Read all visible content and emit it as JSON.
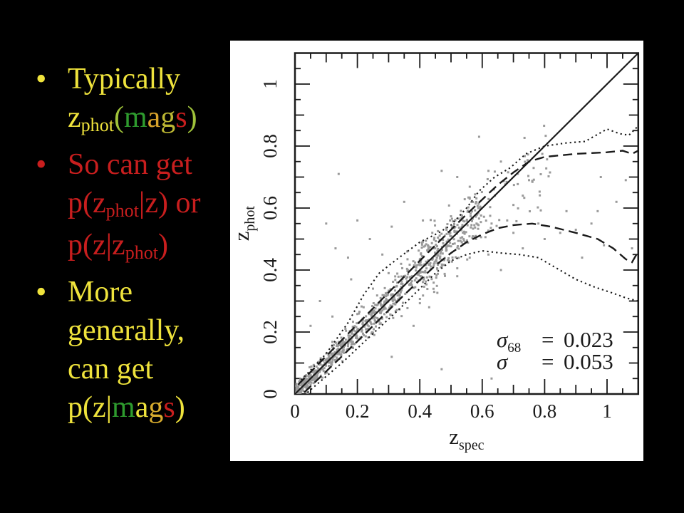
{
  "palette": {
    "y": "#EFE33C",
    "r": "#C81E1E",
    "g": "#2E9B2E",
    "o": "#D9A32B",
    "og": "#BCB733",
    "yg": "#9FC23A",
    "o2": "#D8AC2E"
  },
  "bullets": [
    {
      "marker": "•",
      "marker_color": "#EFE33C",
      "lines": [
        [
          {
            "t": "Typically",
            "c": "y"
          }
        ],
        [
          {
            "t": "z",
            "c": "y"
          },
          {
            "t": "phot",
            "c": "y",
            "sub": true
          },
          {
            "t": "(",
            "c": "yg"
          },
          {
            "t": "m",
            "c": "g"
          },
          {
            "t": "a",
            "c": "o"
          },
          {
            "t": "g",
            "c": "og"
          },
          {
            "t": "s",
            "c": "r"
          },
          {
            "t": ")",
            "c": "yg"
          }
        ]
      ]
    },
    {
      "marker": "•",
      "marker_color": "#C81E1E",
      "lines": [
        [
          {
            "t": "So can get",
            "c": "r"
          }
        ],
        [
          {
            "t": "p(z",
            "c": "r"
          },
          {
            "t": "phot",
            "c": "r",
            "sub": true
          },
          {
            "t": "|z) or",
            "c": "r"
          }
        ],
        [
          {
            "t": "p(z|z",
            "c": "r"
          },
          {
            "t": "phot",
            "c": "r",
            "sub": true
          },
          {
            "t": ")",
            "c": "r"
          }
        ]
      ]
    },
    {
      "marker": "•",
      "marker_color": "#EFE33C",
      "lines": [
        [
          {
            "t": "More",
            "c": "y"
          }
        ],
        [
          {
            "t": "generally,",
            "c": "y"
          }
        ],
        [
          {
            "t": "can get",
            "c": "y"
          }
        ],
        [
          {
            "t": "p(z|",
            "c": "y"
          },
          {
            "t": "m",
            "c": "g"
          },
          {
            "t": "a",
            "c": "y"
          },
          {
            "t": "g",
            "c": "o2"
          },
          {
            "t": "s",
            "c": "r"
          },
          {
            "t": ")",
            "c": "y"
          }
        ]
      ]
    }
  ],
  "chart_data": {
    "type": "scatter",
    "title": "",
    "xlabel": {
      "main": "z",
      "sub": "spec"
    },
    "ylabel": {
      "main": "z",
      "sub": "phot"
    },
    "xlim": [
      0,
      1.1
    ],
    "ylim": [
      0,
      1.1
    ],
    "grid": false,
    "axis_color": "#1a1a1a",
    "ticks": {
      "minor_step": 0.05,
      "mid_step": 0.1,
      "major_step": 0.2,
      "labels": [
        "0",
        "0.2",
        "0.4",
        "0.6",
        "0.8",
        "1"
      ],
      "label_values": [
        0,
        0.2,
        0.4,
        0.6,
        0.8,
        1
      ]
    },
    "lines": [
      {
        "name": "identity-line",
        "style": "solid",
        "width": 2.2,
        "dash": "",
        "points": [
          [
            0,
            0
          ],
          [
            1.1,
            1.1
          ]
        ]
      },
      {
        "name": "upper-dashed-envelope",
        "style": "dashed",
        "width": 2.4,
        "dash": "13 7",
        "points": [
          [
            0.01,
            0.03
          ],
          [
            0.2,
            0.225
          ],
          [
            0.4,
            0.43
          ],
          [
            0.55,
            0.58
          ],
          [
            0.65,
            0.675
          ],
          [
            0.7,
            0.715
          ],
          [
            0.75,
            0.75
          ],
          [
            0.8,
            0.765
          ],
          [
            0.9,
            0.775
          ],
          [
            1.0,
            0.78
          ],
          [
            1.05,
            0.785
          ],
          [
            1.08,
            0.775
          ],
          [
            1.1,
            0.785
          ]
        ]
      },
      {
        "name": "lower-dashed-envelope",
        "style": "dashed",
        "width": 2.4,
        "dash": "13 7",
        "points": [
          [
            0.03,
            0.005
          ],
          [
            0.2,
            0.17
          ],
          [
            0.35,
            0.32
          ],
          [
            0.45,
            0.415
          ],
          [
            0.5,
            0.455
          ],
          [
            0.55,
            0.49
          ],
          [
            0.6,
            0.515
          ],
          [
            0.65,
            0.535
          ],
          [
            0.7,
            0.545
          ],
          [
            0.76,
            0.55
          ],
          [
            0.82,
            0.54
          ],
          [
            0.9,
            0.52
          ],
          [
            0.97,
            0.5
          ],
          [
            1.02,
            0.47
          ],
          [
            1.06,
            0.435
          ],
          [
            1.08,
            0.425
          ],
          [
            1.1,
            0.46
          ]
        ]
      },
      {
        "name": "upper-dotted-envelope",
        "style": "dotted",
        "width": 2.1,
        "dash": "2.2 4.2",
        "points": [
          [
            0.02,
            0.045
          ],
          [
            0.1,
            0.13
          ],
          [
            0.17,
            0.23
          ],
          [
            0.22,
            0.32
          ],
          [
            0.27,
            0.39
          ],
          [
            0.32,
            0.43
          ],
          [
            0.4,
            0.49
          ],
          [
            0.46,
            0.52
          ],
          [
            0.5,
            0.545
          ],
          [
            0.55,
            0.6
          ],
          [
            0.59,
            0.655
          ],
          [
            0.64,
            0.7
          ],
          [
            0.69,
            0.73
          ],
          [
            0.74,
            0.775
          ],
          [
            0.8,
            0.8
          ],
          [
            0.87,
            0.81
          ],
          [
            0.93,
            0.815
          ],
          [
            1.0,
            0.855
          ],
          [
            1.04,
            0.84
          ],
          [
            1.07,
            0.835
          ],
          [
            1.1,
            0.865
          ]
        ]
      },
      {
        "name": "lower-dotted-envelope",
        "style": "dotted",
        "width": 2.1,
        "dash": "2.2 4.2",
        "points": [
          [
            0.04,
            0.005
          ],
          [
            0.15,
            0.1
          ],
          [
            0.25,
            0.195
          ],
          [
            0.33,
            0.27
          ],
          [
            0.4,
            0.34
          ],
          [
            0.45,
            0.39
          ],
          [
            0.5,
            0.43
          ],
          [
            0.55,
            0.45
          ],
          [
            0.6,
            0.462
          ],
          [
            0.66,
            0.455
          ],
          [
            0.72,
            0.45
          ],
          [
            0.78,
            0.44
          ],
          [
            0.84,
            0.405
          ],
          [
            0.9,
            0.37
          ],
          [
            0.96,
            0.345
          ],
          [
            1.02,
            0.325
          ],
          [
            1.06,
            0.31
          ],
          [
            1.1,
            0.3
          ]
        ]
      }
    ],
    "scatter": {
      "seed": 20230217,
      "marker": "square",
      "color": "#9a9a9a",
      "size": 3,
      "bands": [
        {
          "n": 820,
          "xmin": 0.004,
          "xmax": 0.6,
          "xpow": 1.35,
          "s0": 0.012,
          "s1": 0.05
        },
        {
          "n": 130,
          "xmin": 0.4,
          "xmax": 0.82,
          "xpow": 1.7,
          "s0": 0.03,
          "s1": 0.05,
          "bend_x": 0.58,
          "bend_k": 0.55
        }
      ],
      "outliers": [
        [
          0.14,
          0.71
        ],
        [
          0.1,
          0.55
        ],
        [
          0.13,
          0.47
        ],
        [
          0.17,
          0.44
        ],
        [
          0.2,
          0.56
        ],
        [
          0.24,
          0.5
        ],
        [
          0.28,
          0.45
        ],
        [
          0.18,
          0.37
        ],
        [
          0.31,
          0.54
        ],
        [
          0.35,
          0.62
        ],
        [
          0.47,
          0.72
        ],
        [
          0.41,
          0.56
        ],
        [
          0.25,
          0.34
        ],
        [
          0.3,
          0.39
        ],
        [
          0.22,
          0.28
        ],
        [
          0.36,
          0.46
        ],
        [
          0.44,
          0.52
        ],
        [
          0.08,
          0.3
        ],
        [
          0.05,
          0.22
        ],
        [
          0.12,
          0.25
        ],
        [
          0.59,
          0.83
        ],
        [
          0.52,
          0.7
        ],
        [
          0.56,
          0.63
        ],
        [
          0.62,
          0.72
        ],
        [
          0.66,
          0.75
        ],
        [
          0.73,
          0.64
        ],
        [
          0.7,
          0.61
        ],
        [
          0.87,
          0.59
        ],
        [
          1.03,
          0.62
        ],
        [
          0.75,
          0.69
        ],
        [
          0.62,
          0.45
        ],
        [
          0.66,
          0.4
        ],
        [
          0.7,
          0.52
        ],
        [
          0.73,
          0.47
        ],
        [
          0.78,
          0.55
        ],
        [
          0.8,
          0.5
        ],
        [
          0.85,
          0.52
        ],
        [
          0.9,
          0.53
        ],
        [
          0.95,
          0.55
        ],
        [
          0.99,
          0.48
        ],
        [
          0.63,
          0.55
        ],
        [
          0.68,
          0.56
        ],
        [
          0.58,
          0.5
        ],
        [
          0.31,
          0.12
        ],
        [
          0.47,
          0.08
        ],
        [
          0.43,
          0.28
        ],
        [
          0.52,
          0.38
        ],
        [
          0.56,
          0.44
        ],
        [
          0.38,
          0.22
        ],
        [
          0.34,
          0.42
        ],
        [
          0.63,
          0.05
        ],
        [
          0.98,
          0.7
        ],
        [
          1.06,
          0.69
        ],
        [
          0.97,
          0.59
        ],
        [
          1.08,
          0.47
        ],
        [
          0.92,
          0.44
        ]
      ]
    },
    "annotations": [
      {
        "name": "sigma68-stat",
        "sym": "σ",
        "sub": "68",
        "eq": "=",
        "val": "0.023"
      },
      {
        "name": "sigma-stat",
        "sym": "σ",
        "sub": "",
        "eq": "=",
        "val": "0.053"
      }
    ]
  }
}
